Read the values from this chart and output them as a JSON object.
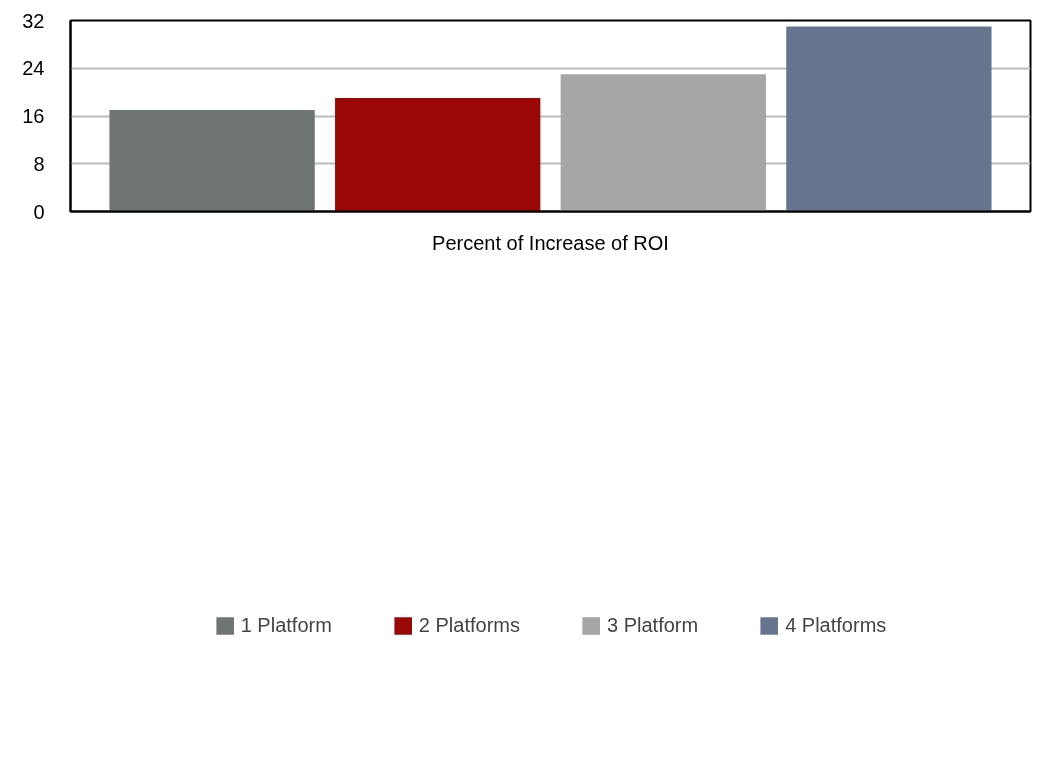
{
  "chart_data": {
    "type": "bar",
    "categories": [
      "Percent of Increase of ROI"
    ],
    "series": [
      {
        "name": "1 Platform",
        "color": "#6f7571",
        "values": [
          17
        ]
      },
      {
        "name": "2 Platforms",
        "color": "#990707",
        "values": [
          19
        ]
      },
      {
        "name": "3 Platform",
        "color": "#a6a6a6",
        "values": [
          23
        ]
      },
      {
        "name": "4 Platforms",
        "color": "#67748f",
        "values": [
          31
        ]
      }
    ],
    "ylim": [
      0,
      32
    ],
    "yticks": [
      0,
      8,
      16,
      24,
      32
    ],
    "grid": "y",
    "legend": "bottom"
  }
}
